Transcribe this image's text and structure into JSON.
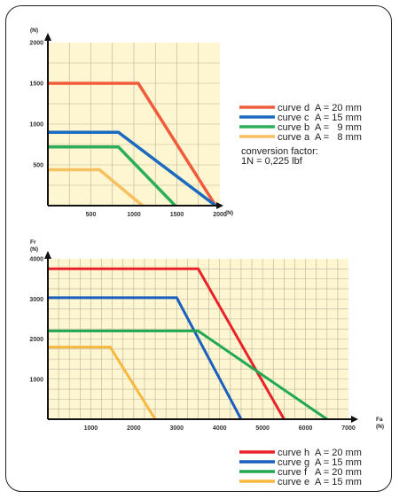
{
  "chart_data": [
    {
      "type": "line",
      "title": "",
      "x_axis": {
        "unit": "(N)",
        "ticks": [
          500,
          1000,
          1500,
          2000
        ],
        "range": [
          0,
          2000
        ]
      },
      "y_axis": {
        "unit": "(N)",
        "ticks": [
          500,
          1000,
          1500,
          2000
        ],
        "range": [
          0,
          2000
        ]
      },
      "series": [
        {
          "name": "curve d",
          "spec": "A = 20 mm",
          "color": "#f15a3a",
          "points": [
            [
              0,
              1500
            ],
            [
              1050,
              1500
            ],
            [
              1950,
              0
            ]
          ]
        },
        {
          "name": "curve c",
          "spec": "A = 15 mm",
          "color": "#1a6bc0",
          "points": [
            [
              0,
              900
            ],
            [
              820,
              900
            ],
            [
              1950,
              0
            ]
          ]
        },
        {
          "name": "curve b",
          "spec": "A =   9 mm",
          "color": "#2cae5a",
          "points": [
            [
              0,
              720
            ],
            [
              820,
              720
            ],
            [
              1480,
              0
            ]
          ]
        },
        {
          "name": "curve a",
          "spec": "A =   8 mm",
          "color": "#f8c060",
          "points": [
            [
              0,
              440
            ],
            [
              600,
              440
            ],
            [
              1100,
              0
            ]
          ]
        }
      ],
      "note_title": "conversion factor:",
      "note_value": "1N = 0,225 lbf"
    },
    {
      "type": "line",
      "title": "",
      "x_axis": {
        "label": "Fa",
        "unit": "(N)",
        "ticks": [
          1000,
          2000,
          3000,
          4000,
          5000,
          6000,
          7000
        ],
        "range": [
          0,
          7000
        ]
      },
      "y_axis": {
        "label": "Fr",
        "unit": "(N)",
        "ticks": [
          1000,
          2000,
          3000,
          4000
        ],
        "range": [
          0,
          4000
        ]
      },
      "series": [
        {
          "name": "curve h",
          "spec": "A = 20 mm",
          "color": "#e8222a",
          "points": [
            [
              0,
              3750
            ],
            [
              3500,
              3750
            ],
            [
              5500,
              0
            ]
          ]
        },
        {
          "name": "curve g",
          "spec": "A = 15 mm",
          "color": "#1a5fc0",
          "points": [
            [
              0,
              3030
            ],
            [
              3000,
              3030
            ],
            [
              4500,
              0
            ]
          ]
        },
        {
          "name": "curve f",
          "spec": "A = 20 mm",
          "color": "#22a850",
          "points": [
            [
              0,
              2200
            ],
            [
              3500,
              2200
            ],
            [
              6500,
              0
            ]
          ]
        },
        {
          "name": "curve e",
          "spec": "A = 15 mm",
          "color": "#f8b840",
          "points": [
            [
              0,
              1800
            ],
            [
              1450,
              1800
            ],
            [
              2500,
              0
            ]
          ]
        }
      ]
    }
  ]
}
